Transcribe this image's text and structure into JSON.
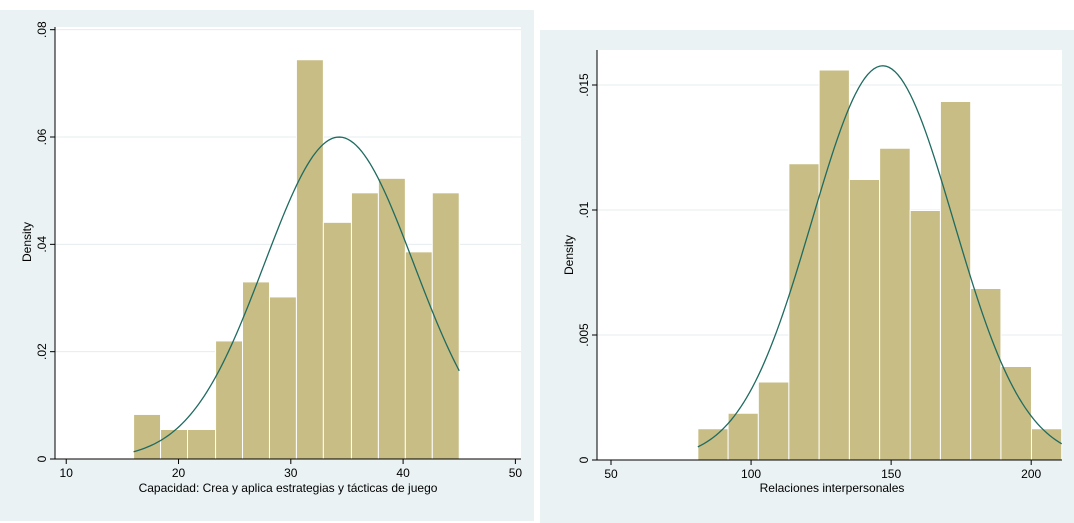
{
  "chart_data": [
    {
      "type": "histogram",
      "xlabel": "Capacidad: Crea y aplica estrategias y tácticas de juego",
      "ylabel": "Density",
      "xlim": [
        9,
        50.5
      ],
      "ylim": [
        0,
        0.0805
      ],
      "xticks": [
        10,
        20,
        30,
        40,
        50
      ],
      "yticks": [
        0,
        0.02,
        0.04,
        0.06,
        0.08
      ],
      "xtick_labels": [
        "10",
        "20",
        "30",
        "40",
        "50"
      ],
      "ytick_labels": [
        "0",
        ".02",
        ".04",
        ".06",
        ".08"
      ],
      "grid": true,
      "bins": [
        {
          "x0": 16.0,
          "x1": 18.4,
          "density": 0.0083
        },
        {
          "x0": 18.4,
          "x1": 20.8,
          "density": 0.0055
        },
        {
          "x0": 20.8,
          "x1": 23.3,
          "density": 0.0055
        },
        {
          "x0": 23.3,
          "x1": 25.7,
          "density": 0.022
        },
        {
          "x0": 25.7,
          "x1": 28.1,
          "density": 0.033
        },
        {
          "x0": 28.1,
          "x1": 30.5,
          "density": 0.0302
        },
        {
          "x0": 30.5,
          "x1": 32.9,
          "density": 0.0744
        },
        {
          "x0": 32.9,
          "x1": 35.4,
          "density": 0.0441
        },
        {
          "x0": 35.4,
          "x1": 37.8,
          "density": 0.0496
        },
        {
          "x0": 37.8,
          "x1": 40.2,
          "density": 0.0523
        },
        {
          "x0": 40.2,
          "x1": 42.6,
          "density": 0.0386
        },
        {
          "x0": 42.6,
          "x1": 45.0,
          "density": 0.0496
        }
      ],
      "normal_curve": {
        "mean": 34.3,
        "sd": 6.65,
        "x_range": [
          16.0,
          45.0
        ]
      }
    },
    {
      "type": "histogram",
      "xlabel": "Relaciones interpersonales",
      "ylabel": "Density",
      "xlim": [
        45,
        211
      ],
      "ylim": [
        0,
        0.0164
      ],
      "xticks": [
        50,
        100,
        150,
        200
      ],
      "yticks": [
        0,
        0.005,
        0.01,
        0.015
      ],
      "xtick_labels": [
        "50",
        "100",
        "150",
        "200"
      ],
      "ytick_labels": [
        "0",
        ".005",
        ".01",
        ".015"
      ],
      "grid": true,
      "bins": [
        {
          "x0": 81.0,
          "x1": 91.8,
          "density": 0.00125
        },
        {
          "x0": 91.8,
          "x1": 102.6,
          "density": 0.00187
        },
        {
          "x0": 102.6,
          "x1": 113.5,
          "density": 0.00312
        },
        {
          "x0": 113.5,
          "x1": 124.3,
          "density": 0.01185
        },
        {
          "x0": 124.3,
          "x1": 135.1,
          "density": 0.0156
        },
        {
          "x0": 135.1,
          "x1": 145.9,
          "density": 0.01122
        },
        {
          "x0": 145.9,
          "x1": 156.8,
          "density": 0.01247
        },
        {
          "x0": 156.8,
          "x1": 167.6,
          "density": 0.00998
        },
        {
          "x0": 167.6,
          "x1": 178.4,
          "density": 0.01434
        },
        {
          "x0": 178.4,
          "x1": 189.2,
          "density": 0.00686
        },
        {
          "x0": 189.2,
          "x1": 200.1,
          "density": 0.00374
        },
        {
          "x0": 200.1,
          "x1": 210.9,
          "density": 0.00125
        }
      ],
      "normal_curve": {
        "mean": 147.0,
        "sd": 25.3,
        "x_range": [
          81.0,
          210.9
        ]
      }
    }
  ]
}
